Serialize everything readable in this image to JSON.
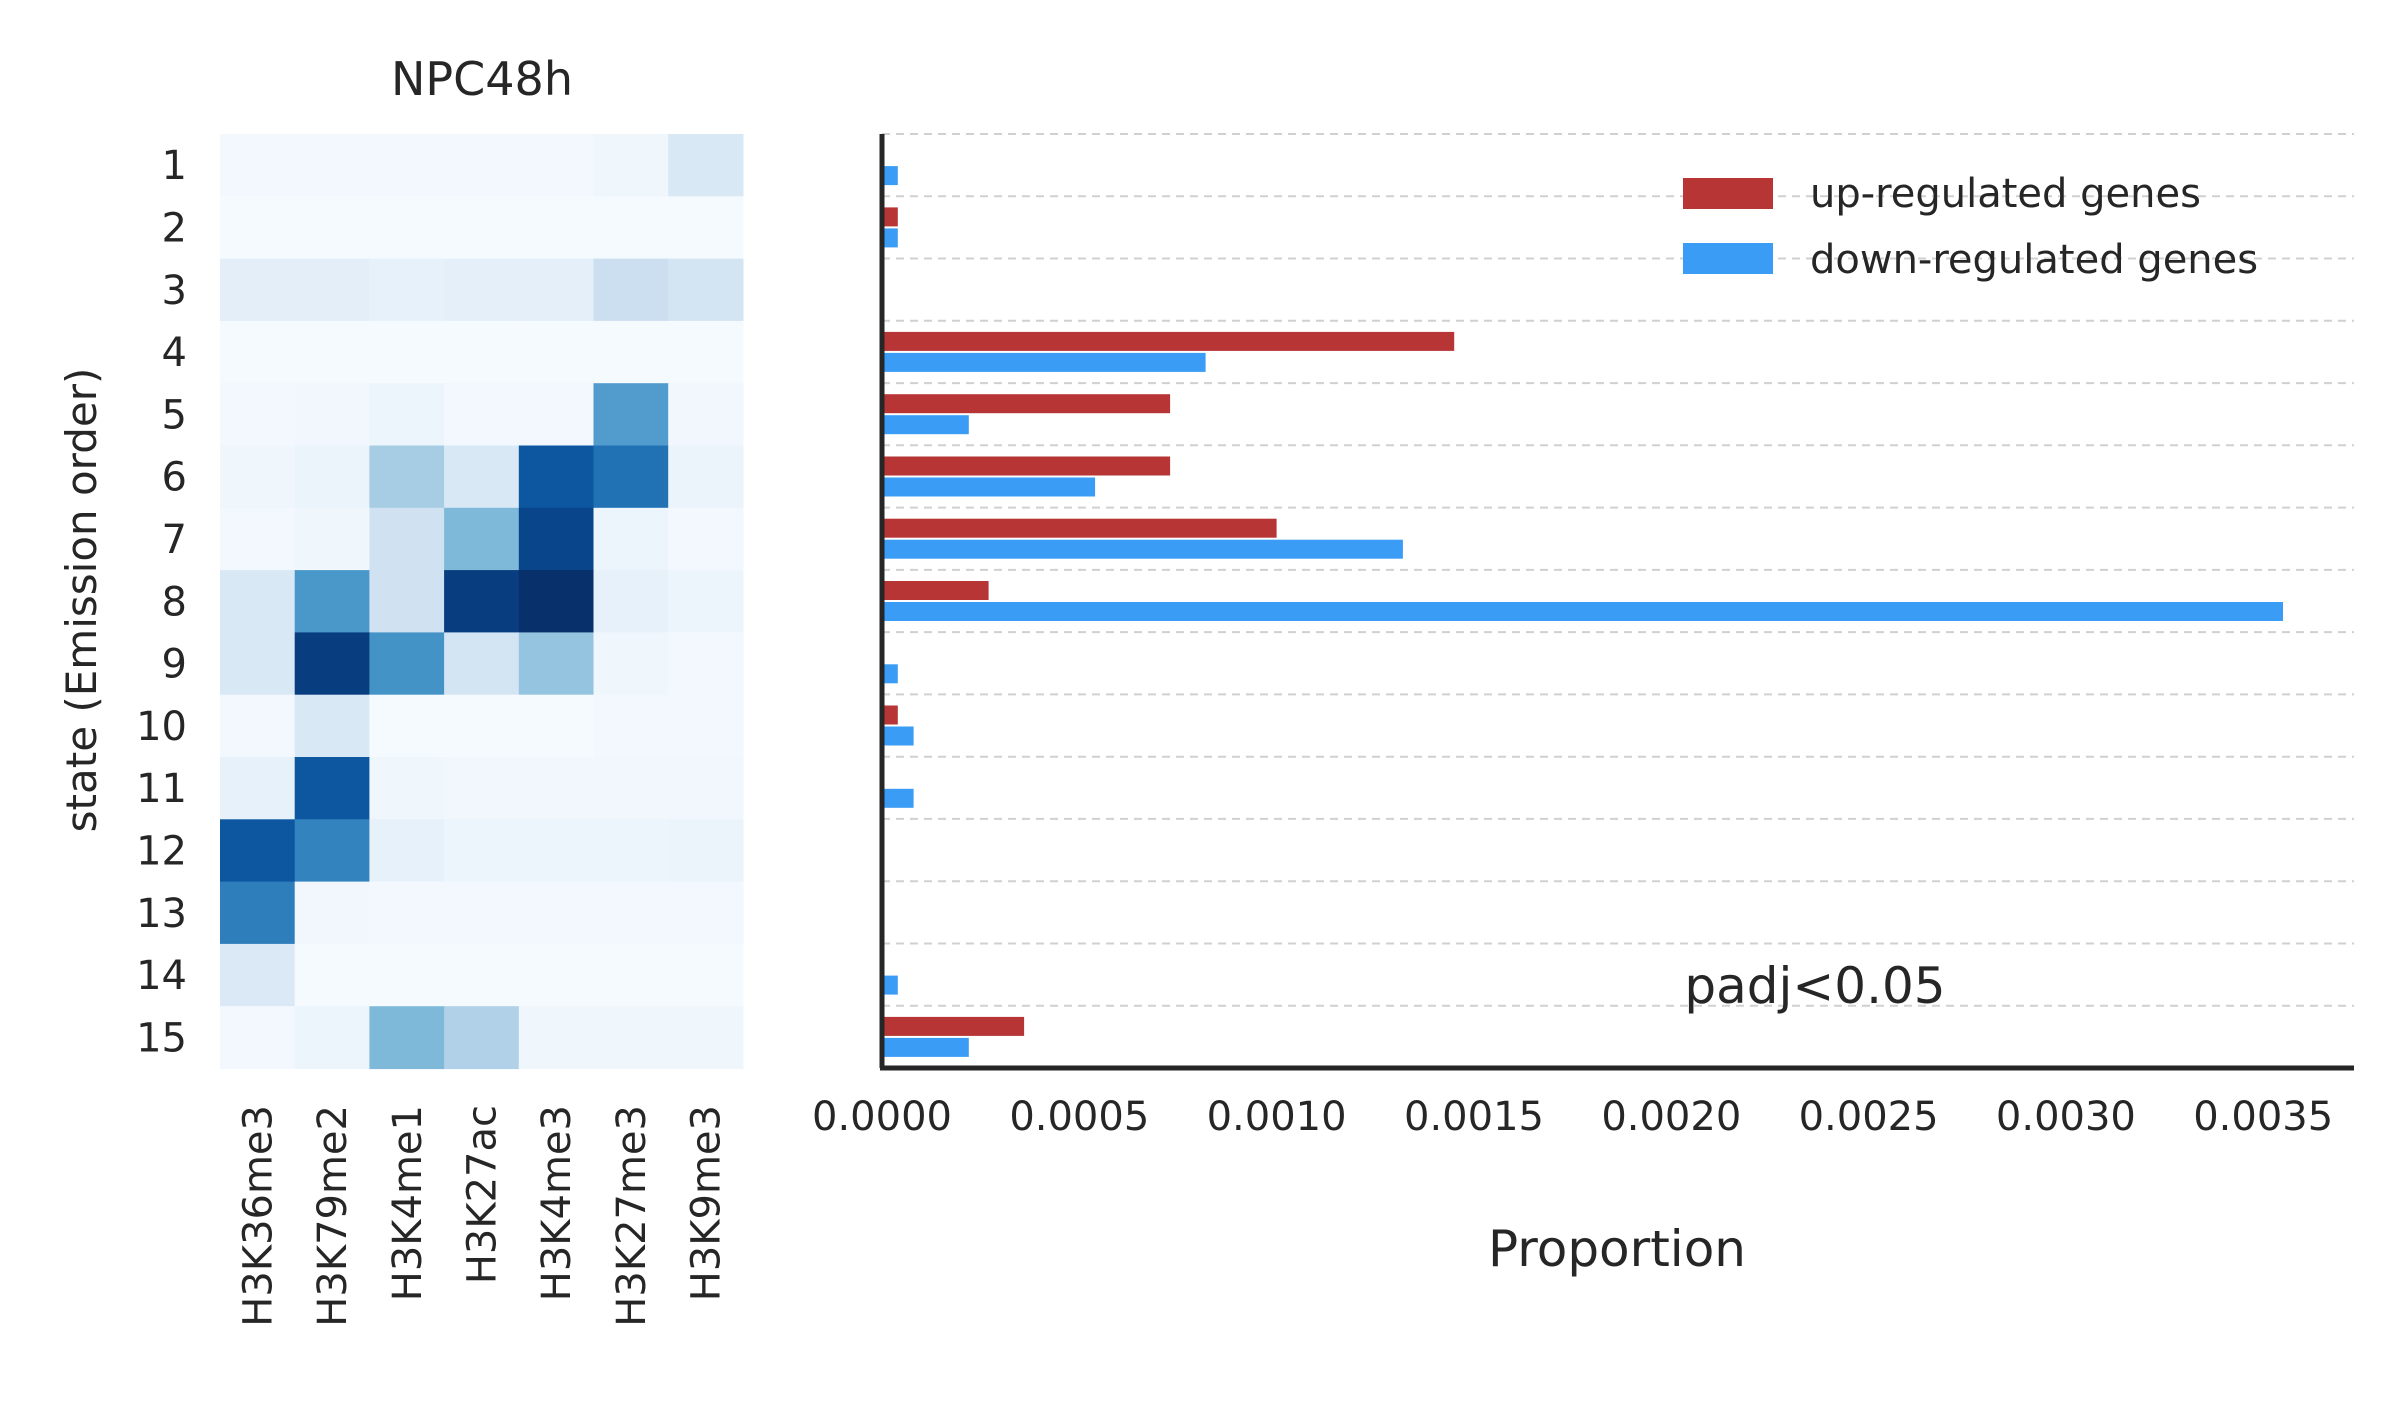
{
  "chart_data": [
    {
      "type": "heatmap",
      "title": "NPC48h",
      "ylabel": "state (Emission order)",
      "xlabel": "",
      "rows": [
        "1",
        "2",
        "3",
        "4",
        "5",
        "6",
        "7",
        "8",
        "9",
        "10",
        "11",
        "12",
        "13",
        "14",
        "15"
      ],
      "columns": [
        "H3K36me3",
        "H3K79me2",
        "H3K4me1",
        "H3K27ac",
        "H3K4me3",
        "H3K27me3",
        "H3K9me3"
      ],
      "colormap": "Blues",
      "values": [
        [
          0.02,
          0.02,
          0.02,
          0.02,
          0.02,
          0.04,
          0.15
        ],
        [
          0.01,
          0.01,
          0.01,
          0.01,
          0.01,
          0.01,
          0.01
        ],
        [
          0.1,
          0.1,
          0.08,
          0.09,
          0.09,
          0.22,
          0.18
        ],
        [
          0.01,
          0.01,
          0.01,
          0.01,
          0.01,
          0.01,
          0.01
        ],
        [
          0.02,
          0.03,
          0.05,
          0.02,
          0.02,
          0.58,
          0.03
        ],
        [
          0.04,
          0.06,
          0.35,
          0.15,
          0.85,
          0.75,
          0.06
        ],
        [
          0.02,
          0.04,
          0.2,
          0.45,
          0.92,
          0.05,
          0.02
        ],
        [
          0.15,
          0.6,
          0.2,
          0.95,
          1.0,
          0.08,
          0.05
        ],
        [
          0.15,
          0.95,
          0.62,
          0.18,
          0.4,
          0.04,
          0.02
        ],
        [
          0.02,
          0.15,
          0.01,
          0.01,
          0.01,
          0.02,
          0.02
        ],
        [
          0.08,
          0.85,
          0.04,
          0.03,
          0.03,
          0.03,
          0.03
        ],
        [
          0.85,
          0.68,
          0.08,
          0.05,
          0.05,
          0.05,
          0.06
        ],
        [
          0.7,
          0.03,
          0.02,
          0.02,
          0.02,
          0.02,
          0.02
        ],
        [
          0.14,
          0.01,
          0.01,
          0.01,
          0.01,
          0.01,
          0.01
        ],
        [
          0.02,
          0.05,
          0.45,
          0.32,
          0.04,
          0.04,
          0.04
        ]
      ]
    },
    {
      "type": "bar",
      "orientation": "horizontal",
      "title": "",
      "xlabel": "Proportion",
      "ylabel": "",
      "categories": [
        "1",
        "2",
        "3",
        "4",
        "5",
        "6",
        "7",
        "8",
        "9",
        "10",
        "11",
        "12",
        "13",
        "14",
        "15"
      ],
      "xlim": [
        0,
        0.00373
      ],
      "xticks": [
        "0.0000",
        "0.0005",
        "0.0010",
        "0.0015",
        "0.0020",
        "0.0025",
        "0.0030",
        "0.0035"
      ],
      "xtick_values": [
        0,
        0.0005,
        0.001,
        0.0015,
        0.002,
        0.0025,
        0.003,
        0.0035
      ],
      "grid": "horizontal dashed",
      "legend_position": "top-right",
      "annotation": "padj<0.05",
      "series": [
        {
          "name": "up-regulated genes",
          "color": "#b73535",
          "values": [
            0,
            4e-05,
            0,
            0.00145,
            0.00073,
            0.00073,
            0.001,
            0.00027,
            0,
            4e-05,
            0,
            0,
            0,
            0,
            0.00036
          ]
        },
        {
          "name": "down-regulated genes",
          "color": "#3a9cf5",
          "values": [
            4e-05,
            4e-05,
            0,
            0.00082,
            0.00022,
            0.00054,
            0.00132,
            0.00355,
            4e-05,
            8e-05,
            8e-05,
            0,
            0,
            4e-05,
            0.00022
          ]
        }
      ]
    }
  ]
}
